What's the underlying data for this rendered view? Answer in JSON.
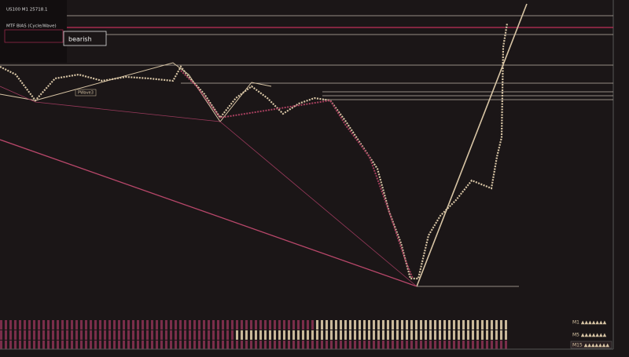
{
  "header": {
    "symbol": "US100 M1 25718.1",
    "bias_title": "MTF BIAS (Cycle/Wave)",
    "bias_label": "bearish"
  },
  "chart": {
    "wave_label": "PWave3"
  },
  "panel": {
    "rows": [
      "M1 ▲▲▲▲▲▲▲",
      "M5 ▲▲▲▲▲▲▲",
      "M15 ▲▲▲▲▲▲▲"
    ]
  }
}
